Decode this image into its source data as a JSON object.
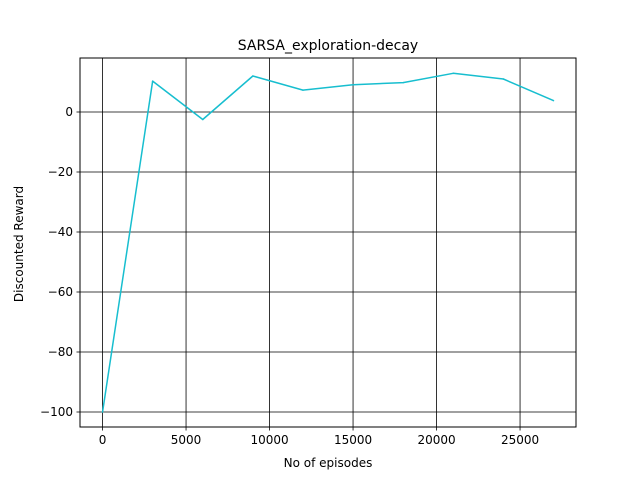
{
  "chart_data": {
    "type": "line",
    "title": "SARSA_exploration-decay",
    "xlabel": "No of episodes",
    "ylabel": "Discounted Reward",
    "x": [
      0,
      3000,
      6000,
      9000,
      12000,
      15000,
      18000,
      21000,
      24000,
      27000
    ],
    "series": [
      {
        "values": [
          -100,
          10.3,
          -2.5,
          12.0,
          7.3,
          9.1,
          9.8,
          12.9,
          11.0,
          3.8
        ],
        "color": "#17becf"
      }
    ],
    "xlim": [
      -1350,
      28350
    ],
    "ylim": [
      -105,
      18
    ],
    "xticks": [
      0,
      5000,
      10000,
      15000,
      20000,
      25000
    ],
    "yticks": [
      -100,
      -80,
      -60,
      -40,
      -20,
      0
    ],
    "xtick_labels": [
      "0",
      "5000",
      "10000",
      "15000",
      "20000",
      "25000"
    ],
    "ytick_labels": [
      "−100",
      "−80",
      "−60",
      "−40",
      "−20",
      "0"
    ],
    "grid": true,
    "grid_color": "#000000"
  }
}
